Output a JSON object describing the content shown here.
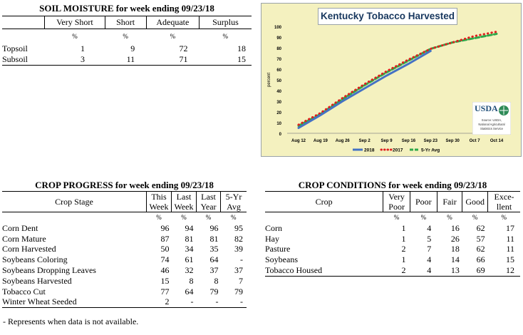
{
  "soil_moisture": {
    "title": "SOIL MOISTURE for week ending 09/23/18",
    "headers": [
      "",
      "Very Short",
      "Short",
      "Adequate",
      "Surplus"
    ],
    "unit_row": [
      "",
      "%",
      "%",
      "%",
      "%"
    ],
    "rows": [
      {
        "label": "Topsoil",
        "values": [
          "1",
          "9",
          "72",
          "18"
        ]
      },
      {
        "label": "Subsoil",
        "values": [
          "3",
          "11",
          "71",
          "15"
        ]
      }
    ]
  },
  "crop_progress": {
    "title": "CROP PROGRESS for week ending 09/23/18",
    "header_stage": "Crop Stage",
    "headers_top": [
      "This",
      "Last",
      "Last",
      "5-Yr"
    ],
    "headers_bottom": [
      "Week",
      "Week",
      "Year",
      "Avg"
    ],
    "unit_row": [
      "%",
      "%",
      "%",
      "%"
    ],
    "rows": [
      {
        "label": "Corn Dent",
        "values": [
          "96",
          "94",
          "96",
          "95"
        ]
      },
      {
        "label": "Corn Mature",
        "values": [
          "87",
          "81",
          "81",
          "82"
        ]
      },
      {
        "label": "Corn Harvested",
        "values": [
          "50",
          "34",
          "35",
          "39"
        ]
      },
      {
        "label": "Soybeans Coloring",
        "values": [
          "74",
          "61",
          "64",
          "-"
        ]
      },
      {
        "label": "Soybeans Dropping Leaves",
        "values": [
          "46",
          "32",
          "37",
          "37"
        ]
      },
      {
        "label": "Soybeans Harvested",
        "values": [
          "15",
          "8",
          "8",
          "7"
        ]
      },
      {
        "label": "Tobacco Cut",
        "values": [
          "77",
          "64",
          "79",
          "79"
        ]
      },
      {
        "label": "Winter Wheat Seeded",
        "values": [
          "2",
          "-",
          "-",
          "-"
        ]
      }
    ],
    "footnote": "- Represents when data is not available."
  },
  "crop_conditions": {
    "title": "CROP CONDITIONS for week ending 09/23/18",
    "header_crop": "Crop",
    "headers_top": [
      "Very",
      "Poor",
      "Fair",
      "Good",
      "Exce-"
    ],
    "headers_bottom": [
      "Poor",
      "",
      "",
      "",
      "llent"
    ],
    "unit_row": [
      "%",
      "%",
      "%",
      "%",
      "%"
    ],
    "rows": [
      {
        "label": "Corn",
        "values": [
          "1",
          "4",
          "16",
          "62",
          "17"
        ]
      },
      {
        "label": "Hay",
        "values": [
          "1",
          "5",
          "26",
          "57",
          "11"
        ]
      },
      {
        "label": "Pasture",
        "values": [
          "2",
          "7",
          "18",
          "62",
          "11"
        ]
      },
      {
        "label": "Soybeans",
        "values": [
          "1",
          "4",
          "14",
          "66",
          "15"
        ]
      },
      {
        "label": "Tobacco Housed",
        "values": [
          "2",
          "4",
          "13",
          "69",
          "12"
        ]
      }
    ]
  },
  "chart_data": {
    "type": "line",
    "title": "Kentucky Tobacco Harvested",
    "ylabel": "percent",
    "xlabel": "",
    "ylim": [
      0,
      100
    ],
    "yticks": [
      0,
      10,
      20,
      30,
      40,
      50,
      60,
      70,
      80,
      90,
      100
    ],
    "x": [
      "Aug 12",
      "Aug 19",
      "Aug 26",
      "Sep 2",
      "Sep 9",
      "Sep 16",
      "Sep 23",
      "Sep 30",
      "Oct 7",
      "Oct 14"
    ],
    "grid": false,
    "legend_position": "bottom",
    "series": [
      {
        "name": "2018",
        "color": "#4472c4",
        "style": "solid",
        "values": [
          5,
          17,
          30,
          42,
          54,
          65,
          77,
          null,
          null,
          null
        ]
      },
      {
        "name": "2017",
        "color": "#e02020",
        "style": "dotted",
        "values": [
          8,
          19,
          33,
          46,
          58,
          69,
          79,
          85,
          91,
          95
        ]
      },
      {
        "name": "5-Yr Avg",
        "color": "#2ea84a",
        "style": "dashed",
        "values": [
          7,
          18,
          32,
          45,
          57,
          68,
          79,
          85,
          89,
          93
        ]
      }
    ],
    "logo_text": "USDA",
    "source_text": [
      "Source: USDA,",
      "National Agricultural",
      "Statistics Service"
    ]
  }
}
